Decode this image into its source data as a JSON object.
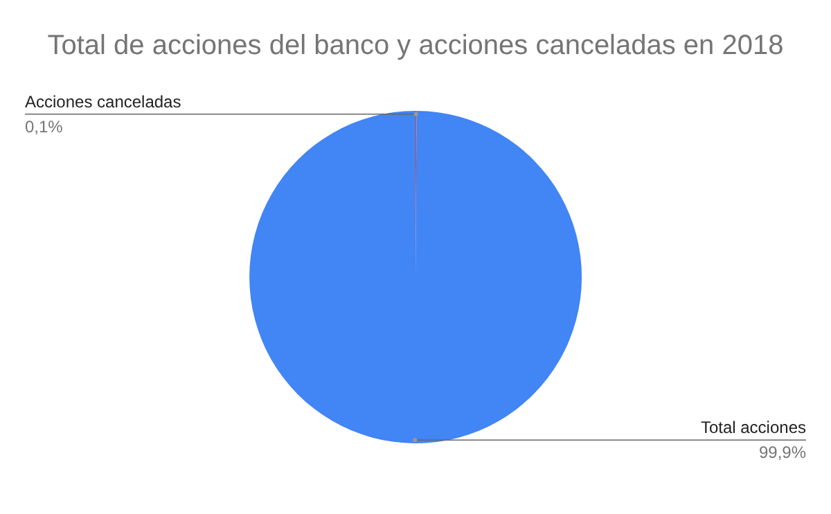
{
  "chart_data": {
    "type": "pie",
    "title": "Total de acciones del banco y acciones canceladas en 2018",
    "categories": [
      "Acciones canceladas",
      "Total acciones"
    ],
    "values": [
      0.1,
      99.9
    ],
    "value_labels": [
      "0,1%",
      "99,9%"
    ],
    "colors": [
      "#db4437",
      "#4285f4"
    ],
    "legend": false
  }
}
